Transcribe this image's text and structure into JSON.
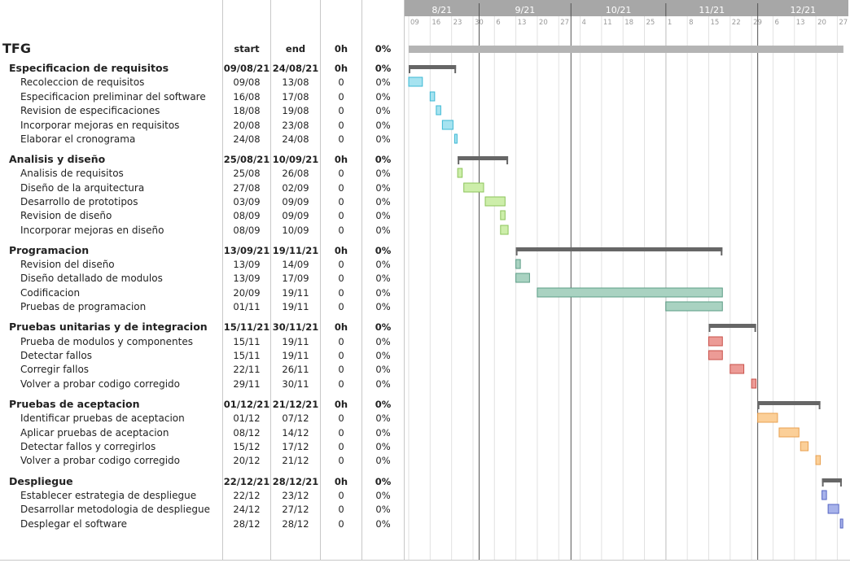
{
  "columns": {
    "start": "start",
    "end": "end",
    "hours": "0h",
    "percent": "0%"
  },
  "title": "TFG",
  "month_labels": [
    "8/21",
    "9/21",
    "10/21",
    "11/21",
    "12/21"
  ],
  "day_labels": [
    "09",
    "16",
    "23",
    "30",
    "6",
    "13",
    "20",
    "27",
    "4",
    "11",
    "18",
    "25",
    "1",
    "8",
    "15",
    "22",
    "29",
    "6",
    "13",
    "20",
    "27"
  ],
  "colors": {
    "header_bg": "#a7a7a7",
    "summary": "#666666",
    "overall": "#b4b4b4"
  },
  "chart_data": {
    "type": "gantt",
    "x_start": "2021-08-09",
    "x_end": "2021-12-28",
    "rows": [
      {
        "kind": "title",
        "name": "TFG",
        "start": "",
        "end": "",
        "hours": "0h",
        "pct": "0%",
        "s": "2021-08-09",
        "e": "2021-12-28"
      },
      {
        "kind": "group",
        "name": "Especificacion de requisitos",
        "start": "09/08/21",
        "end": "24/08/21",
        "hours": "0h",
        "pct": "0%",
        "s": "2021-08-09",
        "e": "2021-08-24"
      },
      {
        "kind": "task",
        "g": 0,
        "name": "Recoleccion de requisitos",
        "start": "09/08",
        "end": "13/08",
        "hours": "0",
        "pct": "0%",
        "s": "2021-08-09",
        "e": "2021-08-13"
      },
      {
        "kind": "task",
        "g": 0,
        "name": "Especificacion preliminar del software",
        "start": "16/08",
        "end": "17/08",
        "hours": "0",
        "pct": "0%",
        "s": "2021-08-16",
        "e": "2021-08-17"
      },
      {
        "kind": "task",
        "g": 0,
        "name": "Revision de especificaciones",
        "start": "18/08",
        "end": "19/08",
        "hours": "0",
        "pct": "0%",
        "s": "2021-08-18",
        "e": "2021-08-19"
      },
      {
        "kind": "task",
        "g": 0,
        "name": "Incorporar mejoras en requisitos",
        "start": "20/08",
        "end": "23/08",
        "hours": "0",
        "pct": "0%",
        "s": "2021-08-20",
        "e": "2021-08-23"
      },
      {
        "kind": "task",
        "g": 0,
        "name": "Elaborar el cronograma",
        "start": "24/08",
        "end": "24/08",
        "hours": "0",
        "pct": "0%",
        "s": "2021-08-24",
        "e": "2021-08-24"
      },
      {
        "kind": "group",
        "name": "Analisis y diseño",
        "start": "25/08/21",
        "end": "10/09/21",
        "hours": "0h",
        "pct": "0%",
        "s": "2021-08-25",
        "e": "2021-09-10"
      },
      {
        "kind": "task",
        "g": 1,
        "name": "Analisis de requisitos",
        "start": "25/08",
        "end": "26/08",
        "hours": "0",
        "pct": "0%",
        "s": "2021-08-25",
        "e": "2021-08-26"
      },
      {
        "kind": "task",
        "g": 1,
        "name": "Diseño de la arquitectura",
        "start": "27/08",
        "end": "02/09",
        "hours": "0",
        "pct": "0%",
        "s": "2021-08-27",
        "e": "2021-09-02"
      },
      {
        "kind": "task",
        "g": 1,
        "name": "Desarrollo de prototipos",
        "start": "03/09",
        "end": "09/09",
        "hours": "0",
        "pct": "0%",
        "s": "2021-09-03",
        "e": "2021-09-09"
      },
      {
        "kind": "task",
        "g": 1,
        "name": "Revision de diseño",
        "start": "08/09",
        "end": "09/09",
        "hours": "0",
        "pct": "0%",
        "s": "2021-09-08",
        "e": "2021-09-09"
      },
      {
        "kind": "task",
        "g": 1,
        "name": "Incorporar mejoras en diseño",
        "start": "08/09",
        "end": "10/09",
        "hours": "0",
        "pct": "0%",
        "s": "2021-09-08",
        "e": "2021-09-10"
      },
      {
        "kind": "group",
        "name": "Programacion",
        "start": "13/09/21",
        "end": "19/11/21",
        "hours": "0h",
        "pct": "0%",
        "s": "2021-09-13",
        "e": "2021-11-19"
      },
      {
        "kind": "task",
        "g": 2,
        "name": "Revision del diseño",
        "start": "13/09",
        "end": "14/09",
        "hours": "0",
        "pct": "0%",
        "s": "2021-09-13",
        "e": "2021-09-14"
      },
      {
        "kind": "task",
        "g": 2,
        "name": "Diseño detallado de modulos",
        "start": "13/09",
        "end": "17/09",
        "hours": "0",
        "pct": "0%",
        "s": "2021-09-13",
        "e": "2021-09-17"
      },
      {
        "kind": "task",
        "g": 2,
        "name": "Codificacion",
        "start": "20/09",
        "end": "19/11",
        "hours": "0",
        "pct": "0%",
        "s": "2021-09-20",
        "e": "2021-11-19"
      },
      {
        "kind": "task",
        "g": 2,
        "name": "Pruebas de programacion",
        "start": "01/11",
        "end": "19/11",
        "hours": "0",
        "pct": "0%",
        "s": "2021-11-01",
        "e": "2021-11-19"
      },
      {
        "kind": "group",
        "name": "Pruebas unitarias y de integracion",
        "start": "15/11/21",
        "end": "30/11/21",
        "hours": "0h",
        "pct": "0%",
        "s": "2021-11-15",
        "e": "2021-11-30"
      },
      {
        "kind": "task",
        "g": 3,
        "name": "Prueba de modulos y componentes",
        "start": "15/11",
        "end": "19/11",
        "hours": "0",
        "pct": "0%",
        "s": "2021-11-15",
        "e": "2021-11-19"
      },
      {
        "kind": "task",
        "g": 3,
        "name": "Detectar fallos",
        "start": "15/11",
        "end": "19/11",
        "hours": "0",
        "pct": "0%",
        "s": "2021-11-15",
        "e": "2021-11-19"
      },
      {
        "kind": "task",
        "g": 3,
        "name": "Corregir fallos",
        "start": "22/11",
        "end": "26/11",
        "hours": "0",
        "pct": "0%",
        "s": "2021-11-22",
        "e": "2021-11-26"
      },
      {
        "kind": "task",
        "g": 3,
        "name": "Volver a probar codigo corregido",
        "start": "29/11",
        "end": "30/11",
        "hours": "0",
        "pct": "0%",
        "s": "2021-11-29",
        "e": "2021-11-30"
      },
      {
        "kind": "group",
        "name": "Pruebas de aceptacion",
        "start": "01/12/21",
        "end": "21/12/21",
        "hours": "0h",
        "pct": "0%",
        "s": "2021-12-01",
        "e": "2021-12-21"
      },
      {
        "kind": "task",
        "g": 4,
        "name": "Identificar pruebas de aceptacion",
        "start": "01/12",
        "end": "07/12",
        "hours": "0",
        "pct": "0%",
        "s": "2021-12-01",
        "e": "2021-12-07"
      },
      {
        "kind": "task",
        "g": 4,
        "name": "Aplicar pruebas de aceptacion",
        "start": "08/12",
        "end": "14/12",
        "hours": "0",
        "pct": "0%",
        "s": "2021-12-08",
        "e": "2021-12-14"
      },
      {
        "kind": "task",
        "g": 4,
        "name": "Detectar fallos y corregirlos",
        "start": "15/12",
        "end": "17/12",
        "hours": "0",
        "pct": "0%",
        "s": "2021-12-15",
        "e": "2021-12-17"
      },
      {
        "kind": "task",
        "g": 4,
        "name": "Volver a probar codigo corregido",
        "start": "20/12",
        "end": "21/12",
        "hours": "0",
        "pct": "0%",
        "s": "2021-12-20",
        "e": "2021-12-21"
      },
      {
        "kind": "group",
        "name": "Despliegue",
        "start": "22/12/21",
        "end": "28/12/21",
        "hours": "0h",
        "pct": "0%",
        "s": "2021-12-22",
        "e": "2021-12-28"
      },
      {
        "kind": "task",
        "g": 5,
        "name": "Establecer estrategia de despliegue",
        "start": "22/12",
        "end": "23/12",
        "hours": "0",
        "pct": "0%",
        "s": "2021-12-22",
        "e": "2021-12-23"
      },
      {
        "kind": "task",
        "g": 5,
        "name": "Desarrollar metodologia de despliegue",
        "start": "24/12",
        "end": "27/12",
        "hours": "0",
        "pct": "0%",
        "s": "2021-12-24",
        "e": "2021-12-27"
      },
      {
        "kind": "task",
        "g": 5,
        "name": "Desplegar el software",
        "start": "28/12",
        "end": "28/12",
        "hours": "0",
        "pct": "0%",
        "s": "2021-12-28",
        "e": "2021-12-28"
      }
    ],
    "group_colors": [
      {
        "fill": "#a6e3f0",
        "stroke": "#3cb8d4"
      },
      {
        "fill": "#cdeeaa",
        "stroke": "#8cc45a"
      },
      {
        "fill": "#a9d2c1",
        "stroke": "#5c9d86"
      },
      {
        "fill": "#ec9b96",
        "stroke": "#c9514a"
      },
      {
        "fill": "#fbcf98",
        "stroke": "#e8a050"
      },
      {
        "fill": "#a7b2ea",
        "stroke": "#5666c4"
      }
    ]
  }
}
